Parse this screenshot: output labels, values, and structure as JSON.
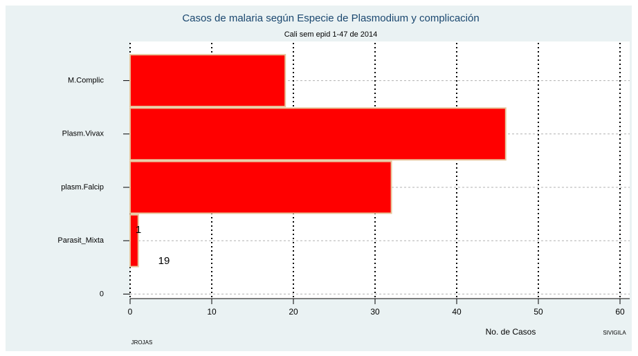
{
  "chart_data": {
    "type": "bar",
    "orientation": "horizontal",
    "title": "Casos de malaria según Especie de Plasmodium y complicación",
    "subtitle": "Cali sem epid 1-47 de 2014",
    "x_label": "No. de Casos",
    "source": "SIVIGILA",
    "author": "JROJAS",
    "categories": [
      "M.Complic",
      "Plasm.Vivax",
      "plasm.Falcip",
      "Parasit_Mixta",
      "0"
    ],
    "values": [
      19,
      46,
      32,
      1,
      null
    ],
    "color": "#ff0000",
    "edge_color": "#e6c49a",
    "annotations": [
      "1",
      "19"
    ],
    "xlim": [
      0,
      60
    ],
    "xticks": [
      0,
      10,
      20,
      30,
      40,
      50,
      60
    ],
    "grid": true
  }
}
